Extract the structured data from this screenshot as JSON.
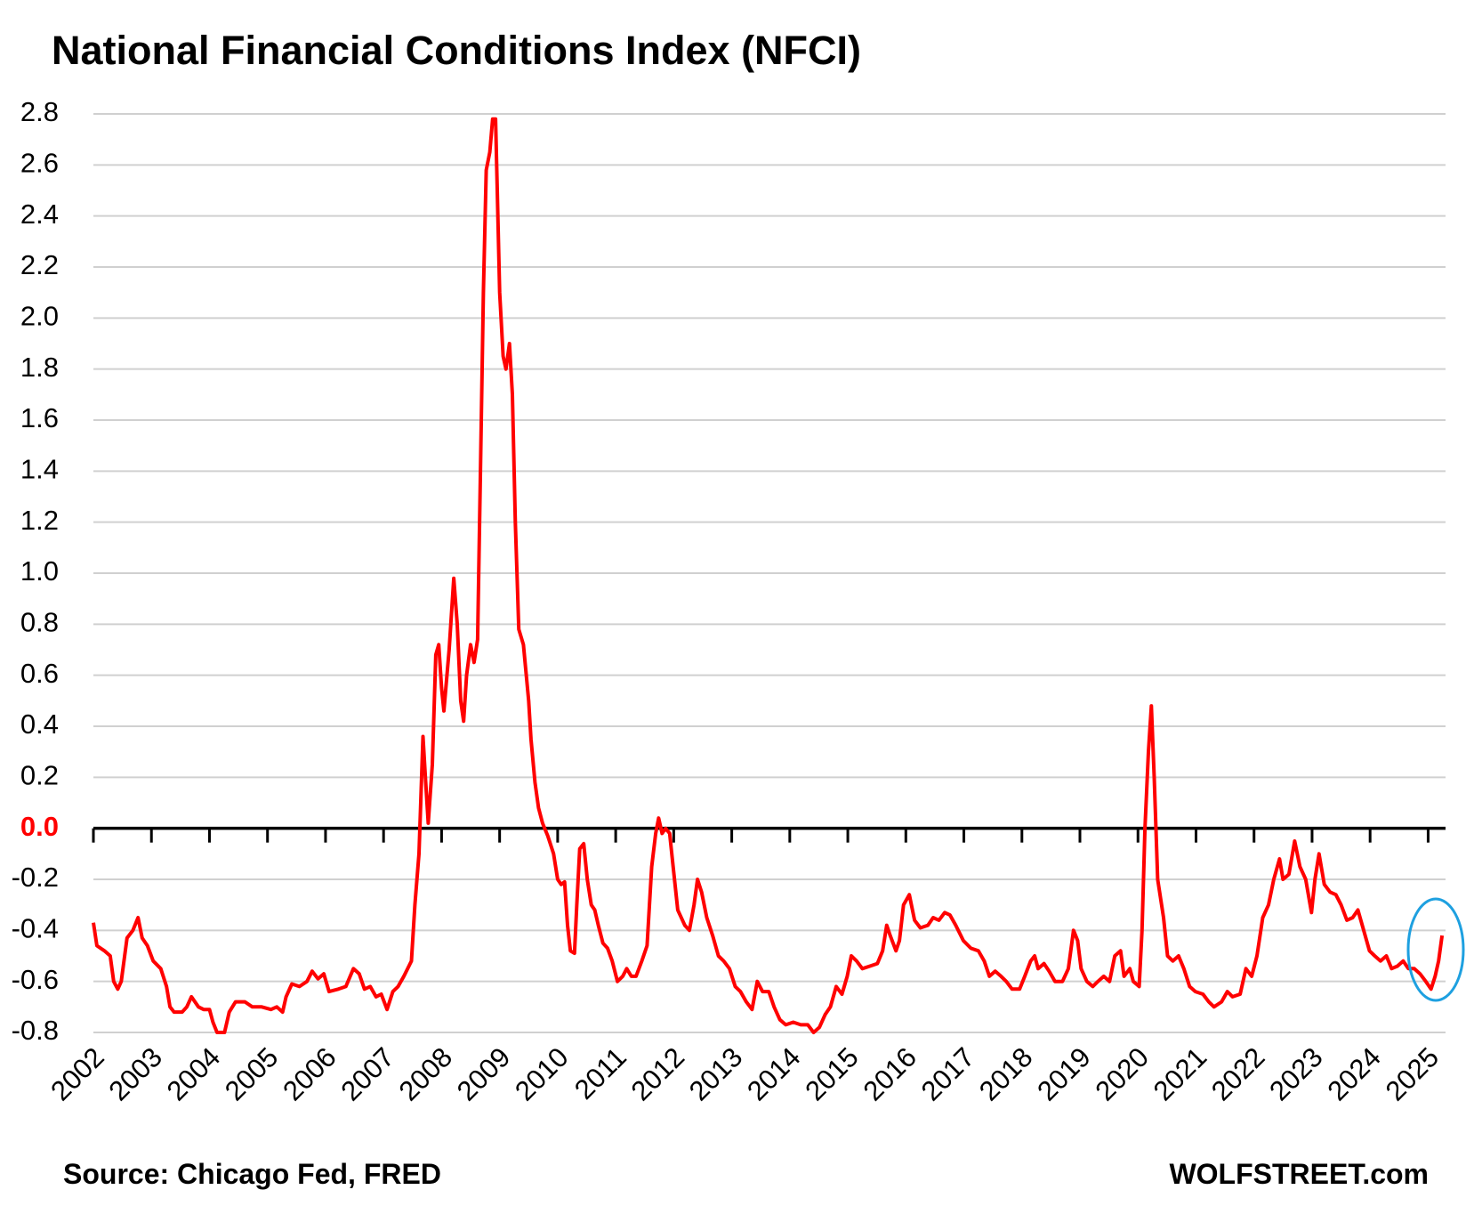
{
  "chart_data": {
    "type": "line",
    "title": "National Financial Conditions Index (NFCI)",
    "source": "Source: Chicago Fed, FRED",
    "credit": "WOLFSTREET.com",
    "color": "#ff0000",
    "grid": true,
    "xlim": [
      2002,
      2025.3
    ],
    "xticks": [
      2002,
      2003,
      2004,
      2005,
      2006,
      2007,
      2008,
      2009,
      2010,
      2011,
      2012,
      2013,
      2014,
      2015,
      2016,
      2017,
      2018,
      2019,
      2020,
      2021,
      2022,
      2023,
      2024,
      2025
    ],
    "ylim": [
      -0.8,
      2.8
    ],
    "yticks": [
      -0.8,
      -0.6,
      -0.4,
      -0.2,
      {
        "value": 0,
        "label": "0.0"
      },
      0.2,
      0.4,
      0.6,
      0.8,
      {
        "value": 1,
        "label": "1.0"
      },
      1.2,
      1.4,
      1.6,
      1.8,
      {
        "value": 2,
        "label": "2.0"
      },
      2.2,
      2.4,
      2.6,
      2.8
    ],
    "x": [
      2002,
      2002.06,
      2002.19,
      2002.29,
      2002.35,
      2002.42,
      2002.48,
      2002.58,
      2002.68,
      2002.77,
      2002.84,
      2002.93,
      2003.03,
      2003.16,
      2003.26,
      2003.32,
      2003.39,
      2003.53,
      2003.61,
      2003.69,
      2003.81,
      2003.9,
      2004,
      2004.06,
      2004.13,
      2004.26,
      2004.34,
      2004.45,
      2004.61,
      2004.74,
      2004.9,
      2005.06,
      2005.16,
      2005.26,
      2005.32,
      2005.42,
      2005.55,
      2005.68,
      2005.77,
      2005.87,
      2005.97,
      2006.06,
      2006.22,
      2006.35,
      2006.48,
      2006.58,
      2006.67,
      2006.77,
      2006.87,
      2006.96,
      2007.06,
      2007.16,
      2007.25,
      2007.35,
      2007.48,
      2007.54,
      2007.61,
      2007.68,
      2007.72,
      2007.77,
      2007.84,
      2007.9,
      2007.95,
      2008,
      2008.04,
      2008.13,
      2008.21,
      2008.27,
      2008.33,
      2008.38,
      2008.43,
      2008.5,
      2008.56,
      2008.62,
      2008.67,
      2008.72,
      2008.77,
      2008.83,
      2008.88,
      2008.93,
      2008.96,
      2009,
      2009.06,
      2009.11,
      2009.17,
      2009.22,
      2009.27,
      2009.33,
      2009.41,
      2009.5,
      2009.54,
      2009.61,
      2009.67,
      2009.74,
      2009.83,
      2009.93,
      2010,
      2010.06,
      2010.12,
      2010.17,
      2010.22,
      2010.29,
      2010.33,
      2010.38,
      2010.45,
      2010.51,
      2010.58,
      2010.64,
      2010.7,
      2010.78,
      2010.86,
      2010.94,
      2011.03,
      2011.12,
      2011.19,
      2011.27,
      2011.35,
      2011.45,
      2011.54,
      2011.62,
      2011.69,
      2011.74,
      2011.8,
      2011.86,
      2011.93,
      2011.99,
      2012.07,
      2012.19,
      2012.27,
      2012.35,
      2012.41,
      2012.48,
      2012.57,
      2012.67,
      2012.77,
      2012.86,
      2012.96,
      2013.06,
      2013.15,
      2013.25,
      2013.35,
      2013.44,
      2013.53,
      2013.64,
      2013.73,
      2013.83,
      2013.93,
      2014.06,
      2014.19,
      2014.31,
      2014.41,
      2014.51,
      2014.61,
      2014.7,
      2014.8,
      2014.9,
      2014.99,
      2015.06,
      2015.15,
      2015.25,
      2015.38,
      2015.51,
      2015.6,
      2015.67,
      2015.73,
      2015.83,
      2015.89,
      2015.96,
      2016.06,
      2016.15,
      2016.25,
      2016.38,
      2016.47,
      2016.57,
      2016.67,
      2016.76,
      2016.86,
      2016.99,
      2017.12,
      2017.25,
      2017.35,
      2017.44,
      2017.54,
      2017.64,
      2017.73,
      2017.83,
      2017.96,
      2018.05,
      2018.15,
      2018.22,
      2018.28,
      2018.38,
      2018.47,
      2018.57,
      2018.7,
      2018.8,
      2018.89,
      2018.96,
      2019.02,
      2019.12,
      2019.22,
      2019.31,
      2019.41,
      2019.51,
      2019.6,
      2019.7,
      2019.76,
      2019.86,
      2019.92,
      2020.02,
      2020.07,
      2020.12,
      2020.18,
      2020.23,
      2020.28,
      2020.34,
      2020.44,
      2020.51,
      2020.6,
      2020.7,
      2020.79,
      2020.89,
      2020.99,
      2021.12,
      2021.22,
      2021.31,
      2021.44,
      2021.54,
      2021.63,
      2021.76,
      2021.86,
      2021.96,
      2022.05,
      2022.15,
      2022.25,
      2022.34,
      2022.44,
      2022.5,
      2022.6,
      2022.7,
      2022.79,
      2022.89,
      2022.99,
      2023.05,
      2023.12,
      2023.21,
      2023.31,
      2023.41,
      2023.5,
      2023.6,
      2023.7,
      2023.79,
      2023.89,
      2023.99,
      2024.08,
      2024.18,
      2024.28,
      2024.37,
      2024.47,
      2024.57,
      2024.66,
      2024.76,
      2024.86,
      2024.96,
      2025.05,
      2025.12,
      2025.18,
      2025.24
    ],
    "values": [
      -0.37,
      -0.46,
      -0.48,
      -0.5,
      -0.6,
      -0.63,
      -0.6,
      -0.43,
      -0.4,
      -0.35,
      -0.43,
      -0.46,
      -0.52,
      -0.55,
      -0.62,
      -0.7,
      -0.72,
      -0.72,
      -0.7,
      -0.66,
      -0.7,
      -0.71,
      -0.71,
      -0.76,
      -0.8,
      -0.8,
      -0.72,
      -0.68,
      -0.68,
      -0.7,
      -0.7,
      -0.71,
      -0.7,
      -0.72,
      -0.66,
      -0.61,
      -0.62,
      -0.6,
      -0.56,
      -0.59,
      -0.57,
      -0.64,
      -0.63,
      -0.62,
      -0.55,
      -0.57,
      -0.63,
      -0.62,
      -0.66,
      -0.65,
      -0.71,
      -0.64,
      -0.62,
      -0.58,
      -0.52,
      -0.3,
      -0.1,
      0.36,
      0.2,
      0.02,
      0.25,
      0.68,
      0.72,
      0.55,
      0.46,
      0.7,
      0.98,
      0.8,
      0.5,
      0.42,
      0.6,
      0.72,
      0.65,
      0.74,
      1.4,
      2.1,
      2.58,
      2.65,
      2.78,
      2.78,
      2.5,
      2.1,
      1.85,
      1.8,
      1.9,
      1.7,
      1.2,
      0.78,
      0.72,
      0.5,
      0.35,
      0.18,
      0.08,
      0.02,
      -0.03,
      -0.1,
      -0.2,
      -0.22,
      -0.21,
      -0.38,
      -0.48,
      -0.49,
      -0.3,
      -0.08,
      -0.06,
      -0.2,
      -0.3,
      -0.32,
      -0.38,
      -0.45,
      -0.47,
      -0.52,
      -0.6,
      -0.58,
      -0.55,
      -0.58,
      -0.58,
      -0.52,
      -0.46,
      -0.15,
      -0.02,
      0.04,
      -0.02,
      0,
      -0.02,
      -0.15,
      -0.32,
      -0.38,
      -0.4,
      -0.3,
      -0.2,
      -0.25,
      -0.35,
      -0.42,
      -0.5,
      -0.52,
      -0.55,
      -0.62,
      -0.64,
      -0.68,
      -0.71,
      -0.6,
      -0.64,
      -0.64,
      -0.7,
      -0.75,
      -0.77,
      -0.76,
      -0.77,
      -0.77,
      -0.8,
      -0.78,
      -0.73,
      -0.7,
      -0.62,
      -0.65,
      -0.58,
      -0.5,
      -0.52,
      -0.55,
      -0.54,
      -0.53,
      -0.48,
      -0.38,
      -0.42,
      -0.48,
      -0.44,
      -0.3,
      -0.26,
      -0.36,
      -0.39,
      -0.38,
      -0.35,
      -0.36,
      -0.33,
      -0.34,
      -0.38,
      -0.44,
      -0.47,
      -0.48,
      -0.52,
      -0.58,
      -0.56,
      -0.58,
      -0.6,
      -0.63,
      -0.63,
      -0.58,
      -0.52,
      -0.5,
      -0.55,
      -0.53,
      -0.56,
      -0.6,
      -0.6,
      -0.55,
      -0.4,
      -0.44,
      -0.55,
      -0.6,
      -0.62,
      -0.6,
      -0.58,
      -0.6,
      -0.5,
      -0.48,
      -0.58,
      -0.55,
      -0.6,
      -0.62,
      -0.4,
      0,
      0.3,
      0.48,
      0.2,
      -0.2,
      -0.35,
      -0.5,
      -0.52,
      -0.5,
      -0.55,
      -0.62,
      -0.64,
      -0.65,
      -0.68,
      -0.7,
      -0.68,
      -0.64,
      -0.66,
      -0.65,
      -0.55,
      -0.58,
      -0.5,
      -0.35,
      -0.3,
      -0.2,
      -0.12,
      -0.2,
      -0.18,
      -0.05,
      -0.15,
      -0.2,
      -0.33,
      -0.2,
      -0.1,
      -0.22,
      -0.25,
      -0.26,
      -0.3,
      -0.36,
      -0.35,
      -0.32,
      -0.4,
      -0.48,
      -0.5,
      -0.52,
      -0.5,
      -0.55,
      -0.54,
      -0.52,
      -0.55,
      -0.55,
      -0.57,
      -0.6,
      -0.63,
      -0.58,
      -0.52,
      -0.42
    ]
  }
}
